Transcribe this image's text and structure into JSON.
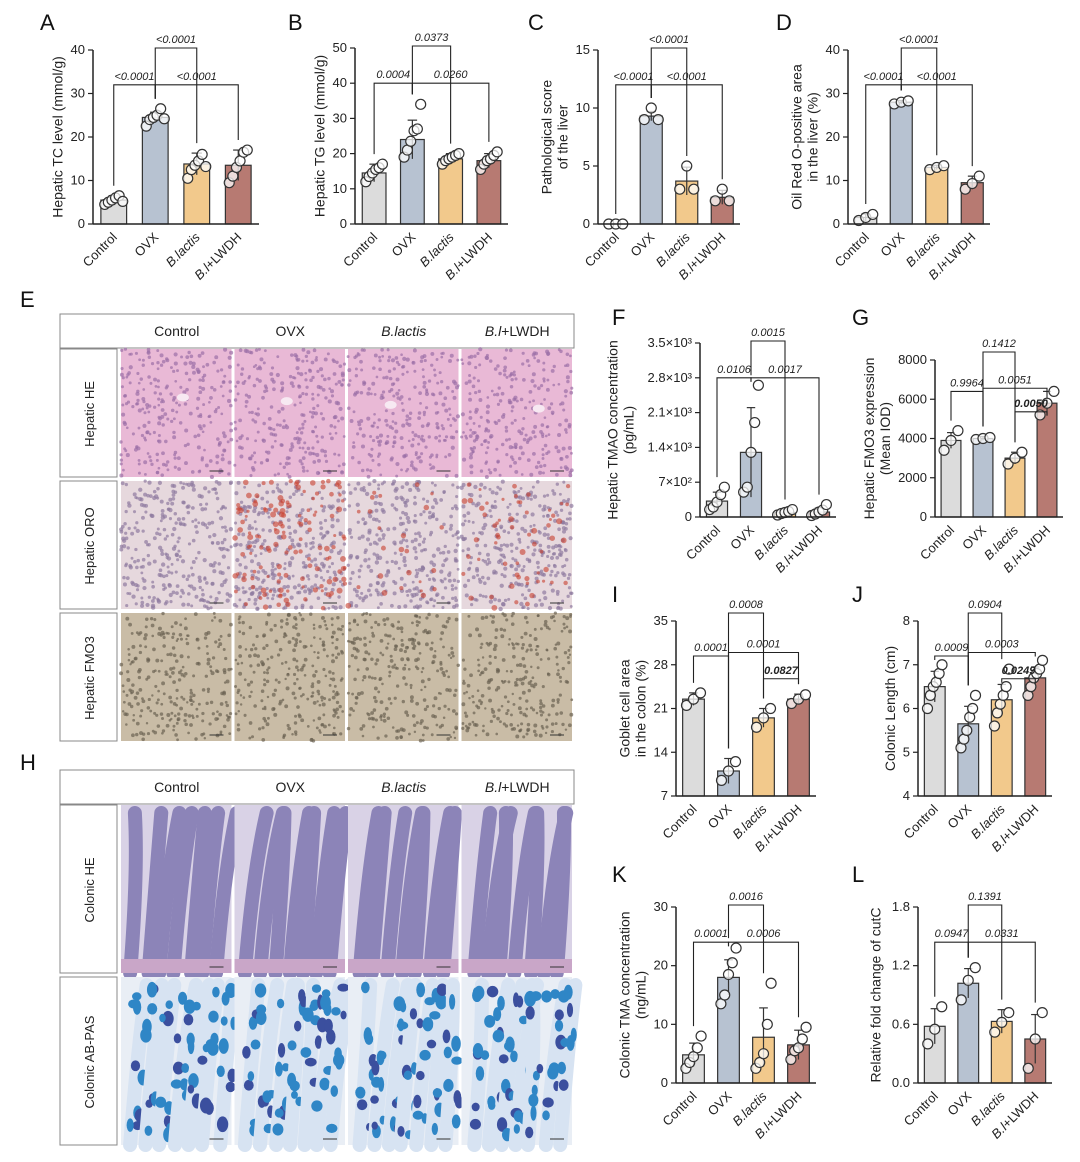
{
  "palette": {
    "Control": "#dcdcdc",
    "OVX": "#b7c2d1",
    "B.lactis": "#f2c98c",
    "B.l+LWDH": "#b77a72",
    "dot_fill": "#ffffff",
    "axis": "#222222",
    "bracket": "#222222",
    "highlight_p": "#c0162b"
  },
  "panels_micro": [
    {
      "letter": "E",
      "headers": [
        "Control",
        "OVX",
        "B.lactis",
        "B.l+LWDH"
      ],
      "rows": [
        {
          "label": "Hepatic HE",
          "stain": "liver-he"
        },
        {
          "label": "Hepatic ORO",
          "stain": "liver-oro"
        },
        {
          "label": "Hepatic FMO3",
          "stain": "liver-fmo3"
        }
      ]
    },
    {
      "letter": "H",
      "headers": [
        "Control",
        "OVX",
        "B.lactis",
        "B.l+LWDH"
      ],
      "rows": [
        {
          "label": "Colonic HE",
          "stain": "colon-he"
        },
        {
          "label": "Colonic AB-PAS",
          "stain": "colon-abpas"
        }
      ]
    }
  ],
  "chart_data": [
    {
      "panel": "A",
      "type": "bar",
      "categories": [
        "Control",
        "OVX",
        "B.lactis",
        "B.l+LWDH"
      ],
      "ylabel": "Hepatic TC level (mmol/g)",
      "ylim": [
        0,
        40
      ],
      "yticks": [
        0,
        10,
        20,
        30,
        40
      ],
      "values": [
        5.5,
        24.5,
        13.8,
        13.5
      ],
      "errors": [
        1.0,
        1.2,
        2.5,
        3.5
      ],
      "points": [
        [
          4.5,
          5.0,
          5.5,
          6.0,
          6.5,
          5.2
        ],
        [
          22.5,
          24.0,
          24.5,
          25.0,
          26.5,
          24.2
        ],
        [
          10.5,
          12.5,
          13.5,
          14.5,
          16.0,
          13.2
        ],
        [
          9.5,
          11.0,
          13.0,
          14.5,
          16.5,
          17.0
        ]
      ],
      "comparisons": [
        {
          "pair": [
            0,
            1
          ],
          "p": "<0.0001"
        },
        {
          "pair": [
            1,
            2
          ],
          "p": "<0.0001"
        },
        {
          "pair": [
            1,
            3
          ],
          "p": "<0.0001"
        }
      ]
    },
    {
      "panel": "B",
      "type": "bar",
      "categories": [
        "Control",
        "OVX",
        "B.lactis",
        "B.l+LWDH"
      ],
      "ylabel": "Hepatic TG level (mmol/g)",
      "ylim": [
        0,
        50
      ],
      "yticks": [
        0,
        10,
        20,
        30,
        40,
        50
      ],
      "values": [
        14.5,
        24.0,
        18.5,
        18.0
      ],
      "errors": [
        2.5,
        5.5,
        1.5,
        2.0
      ],
      "points": [
        [
          12.0,
          13.5,
          14.5,
          15.5,
          16.0,
          17.0
        ],
        [
          19.0,
          21.0,
          23.5,
          26.5,
          27.0,
          34.0
        ],
        [
          17.0,
          18.0,
          18.5,
          19.0,
          19.5,
          20.0
        ],
        [
          15.5,
          17.0,
          18.0,
          18.5,
          19.5,
          20.5
        ]
      ],
      "comparisons": [
        {
          "pair": [
            0,
            1
          ],
          "p": "0.0004"
        },
        {
          "pair": [
            1,
            2
          ],
          "p": "0.0373"
        },
        {
          "pair": [
            1,
            3
          ],
          "p": "0.0260"
        }
      ]
    },
    {
      "panel": "C",
      "type": "bar",
      "categories": [
        "Control",
        "OVX",
        "B.lactis",
        "B.l+LWDH"
      ],
      "ylabel": [
        "Pathological score",
        "of the liver"
      ],
      "ylim": [
        0,
        15
      ],
      "yticks": [
        0,
        5,
        10,
        15
      ],
      "values": [
        0,
        9.3,
        3.7,
        2.3
      ],
      "errors": [
        0,
        0.4,
        1.2,
        0.6
      ],
      "points": [
        [
          0,
          0,
          0
        ],
        [
          9,
          10,
          9
        ],
        [
          3,
          5,
          3
        ],
        [
          2,
          3,
          2
        ]
      ],
      "comparisons": [
        {
          "pair": [
            0,
            1
          ],
          "p": "<0.0001"
        },
        {
          "pair": [
            1,
            2
          ],
          "p": "<0.0001"
        },
        {
          "pair": [
            1,
            3
          ],
          "p": "<0.0001"
        }
      ]
    },
    {
      "panel": "D",
      "type": "bar",
      "categories": [
        "Control",
        "OVX",
        "B.lactis",
        "B.l+LWDH"
      ],
      "ylabel": [
        "Oil Red O-positive area",
        "in the liver (%)"
      ],
      "ylim": [
        0,
        40
      ],
      "yticks": [
        0,
        10,
        20,
        30,
        40
      ],
      "values": [
        1.5,
        28.0,
        13.0,
        9.5
      ],
      "errors": [
        0.8,
        0.4,
        0.5,
        1.5
      ],
      "points": [
        [
          0.8,
          1.5,
          2.2
        ],
        [
          27.6,
          28.0,
          28.3
        ],
        [
          12.5,
          13.0,
          13.4
        ],
        [
          8.0,
          9.3,
          11.0
        ]
      ],
      "comparisons": [
        {
          "pair": [
            0,
            1
          ],
          "p": "<0.0001"
        },
        {
          "pair": [
            1,
            2
          ],
          "p": "<0.0001"
        },
        {
          "pair": [
            1,
            3
          ],
          "p": "<0.0001"
        }
      ]
    },
    {
      "panel": "F",
      "type": "bar",
      "categories": [
        "Control",
        "OVX",
        "B.lactis",
        "B.l+LWDH"
      ],
      "ylabel": [
        "Hepatic TMAO concentration",
        "(pg/mL)"
      ],
      "ylim": [
        0,
        3500
      ],
      "yticks": [
        0,
        700,
        1400,
        2100,
        2800,
        3500
      ],
      "ytick_labels": [
        "0",
        "7×10²",
        "1.4×10³",
        "2.1×10³",
        "2.8×10³",
        "3.5×10³"
      ],
      "values": [
        320,
        1300,
        90,
        100
      ],
      "errors": [
        180,
        900,
        60,
        80
      ],
      "points": [
        [
          150,
          200,
          300,
          450,
          600
        ],
        [
          500,
          600,
          1300,
          1900,
          2650
        ],
        [
          40,
          70,
          90,
          110,
          150
        ],
        [
          30,
          60,
          100,
          140,
          250
        ]
      ],
      "comparisons": [
        {
          "pair": [
            0,
            1
          ],
          "p": "0.0106"
        },
        {
          "pair": [
            1,
            2
          ],
          "p": "0.0015"
        },
        {
          "pair": [
            1,
            3
          ],
          "p": "0.0017"
        }
      ]
    },
    {
      "panel": "G",
      "type": "bar",
      "categories": [
        "Control",
        "OVX",
        "B.lactis",
        "B.l+LWDH"
      ],
      "ylabel": [
        "Hepatic FMO3 expression",
        "(Mean IOD)"
      ],
      "ylim": [
        0,
        8000
      ],
      "yticks": [
        0,
        2000,
        4000,
        6000,
        8000
      ],
      "values": [
        3900,
        4000,
        3000,
        5800
      ],
      "errors": [
        400,
        100,
        300,
        600
      ],
      "points": [
        [
          3400,
          3900,
          4400
        ],
        [
          3950,
          4000,
          4050
        ],
        [
          2700,
          3000,
          3300
        ],
        [
          5200,
          5800,
          6400
        ]
      ],
      "comparisons": [
        {
          "pair": [
            0,
            1
          ],
          "p": "0.9964"
        },
        {
          "pair": [
            1,
            2
          ],
          "p": "0.1412"
        },
        {
          "pair": [
            1,
            3
          ],
          "p": "0.0051"
        },
        {
          "pair": [
            2,
            3
          ],
          "p": "0.0050",
          "highlight": true
        }
      ]
    },
    {
      "panel": "I",
      "type": "bar",
      "categories": [
        "Control",
        "OVX",
        "B.lactis",
        "B.l+LWDH"
      ],
      "ylabel": [
        "Goblet cell area",
        "in the colon (%)"
      ],
      "ylim": [
        7,
        35
      ],
      "yticks": [
        7,
        14,
        21,
        28,
        35
      ],
      "values": [
        22.5,
        11.0,
        19.5,
        22.5
      ],
      "errors": [
        1.0,
        2.0,
        1.5,
        0.8
      ],
      "points": [
        [
          21.5,
          22.5,
          23.5
        ],
        [
          9.5,
          11.0,
          12.5
        ],
        [
          18.0,
          19.5,
          21.0
        ],
        [
          21.8,
          22.5,
          23.2
        ]
      ],
      "comparisons": [
        {
          "pair": [
            0,
            1
          ],
          "p": "0.0001"
        },
        {
          "pair": [
            1,
            2
          ],
          "p": "0.0008"
        },
        {
          "pair": [
            1,
            3
          ],
          "p": "0.0001"
        },
        {
          "pair": [
            2,
            3
          ],
          "p": "0.0827",
          "bold": true
        }
      ]
    },
    {
      "panel": "J",
      "type": "bar",
      "categories": [
        "Control",
        "OVX",
        "B.lactis",
        "B.l+LWDH"
      ],
      "ylabel": "Colonic Length (cm)",
      "ylim": [
        4,
        8
      ],
      "yticks": [
        4,
        5,
        6,
        7,
        8
      ],
      "values": [
        6.5,
        5.65,
        6.2,
        6.7
      ],
      "errors": [
        0.35,
        0.4,
        0.35,
        0.25
      ],
      "points": [
        [
          6.0,
          6.3,
          6.5,
          6.6,
          6.8,
          7.0
        ],
        [
          5.1,
          5.3,
          5.5,
          5.8,
          6.0,
          6.3
        ],
        [
          5.6,
          5.9,
          6.1,
          6.3,
          6.5,
          6.9
        ],
        [
          6.3,
          6.5,
          6.7,
          6.8,
          6.9,
          7.1
        ]
      ],
      "comparisons": [
        {
          "pair": [
            0,
            1
          ],
          "p": "0.0009"
        },
        {
          "pair": [
            1,
            2
          ],
          "p": "0.0904"
        },
        {
          "pair": [
            1,
            3
          ],
          "p": "0.0003"
        },
        {
          "pair": [
            2,
            3
          ],
          "p": "0.0249",
          "highlight": true
        }
      ]
    },
    {
      "panel": "K",
      "type": "bar",
      "categories": [
        "Control",
        "OVX",
        "B.lactis",
        "B.l+LWDH"
      ],
      "ylabel": [
        "Colonic TMA concentration",
        "(ng/mL)"
      ],
      "ylim": [
        0,
        30
      ],
      "yticks": [
        0,
        10,
        20,
        30
      ],
      "values": [
        4.8,
        18.0,
        7.8,
        6.5
      ],
      "errors": [
        2.0,
        3.0,
        5.0,
        2.5
      ],
      "points": [
        [
          2.5,
          3.5,
          4.5,
          6.0,
          8.0
        ],
        [
          13.5,
          15.0,
          18.5,
          20.5,
          23.0
        ],
        [
          2.5,
          3.5,
          5.0,
          10.0,
          17.0
        ],
        [
          4.0,
          5.5,
          6.0,
          7.5,
          9.5
        ]
      ],
      "comparisons": [
        {
          "pair": [
            0,
            1
          ],
          "p": "0.0001"
        },
        {
          "pair": [
            1,
            2
          ],
          "p": "0.0016"
        },
        {
          "pair": [
            1,
            3
          ],
          "p": "0.0006"
        }
      ]
    },
    {
      "panel": "L",
      "type": "bar",
      "categories": [
        "Control",
        "OVX",
        "B.lactis",
        "B.l+LWDH"
      ],
      "ylabel": "Relative fold change of cutC",
      "ylim": [
        0,
        1.8
      ],
      "yticks": [
        0,
        0.6,
        1.2,
        1.8
      ],
      "ytick_labels": [
        "0.0",
        "0.6",
        "1.2",
        "1.8"
      ],
      "values": [
        0.58,
        1.02,
        0.63,
        0.45
      ],
      "errors": [
        0.18,
        0.15,
        0.12,
        0.25
      ],
      "points": [
        [
          0.4,
          0.55,
          0.78
        ],
        [
          0.85,
          1.05,
          1.18
        ],
        [
          0.52,
          0.62,
          0.72
        ],
        [
          0.15,
          0.45,
          0.72
        ]
      ],
      "comparisons": [
        {
          "pair": [
            0,
            1
          ],
          "p": "0.0947"
        },
        {
          "pair": [
            1,
            2
          ],
          "p": "0.1391"
        },
        {
          "pair": [
            1,
            3
          ],
          "p": "0.0331"
        }
      ]
    }
  ]
}
